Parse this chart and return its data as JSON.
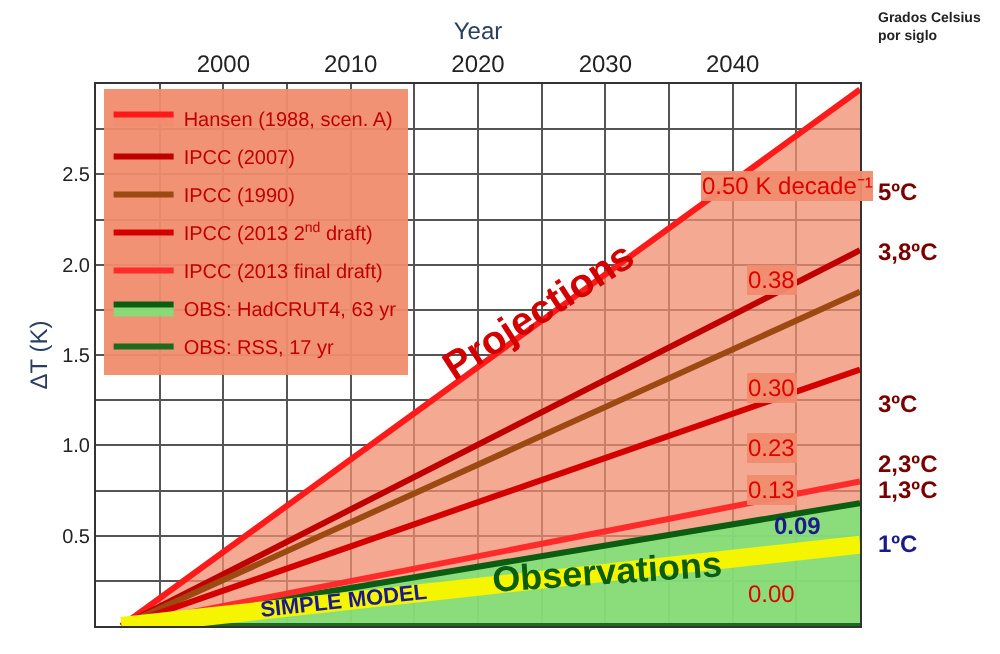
{
  "chart_data": {
    "type": "line",
    "xlabel": "Year",
    "ylabel": "ΔT (K)",
    "xlim": [
      1990,
      2050
    ],
    "ylim": [
      0,
      3.0
    ],
    "xticks": [
      {
        "value": 1995,
        "label": null
      },
      2000,
      {
        "value": 2005,
        "label": null
      },
      2010,
      {
        "value": 2015,
        "label": null
      },
      2020,
      {
        "value": 2025,
        "label": null
      },
      2030,
      {
        "value": 2035,
        "label": null
      },
      2040,
      {
        "value": 2045,
        "label": null
      }
    ],
    "yticks": [
      {
        "value": 0.25,
        "label": null
      },
      0.5,
      {
        "value": 0.75,
        "label": null
      },
      {
        "value": 1,
        "label": "1.0"
      },
      {
        "value": 1.25,
        "label": null
      },
      1.5,
      {
        "value": 1.75,
        "label": null
      },
      {
        "value": 2,
        "label": "2.0"
      },
      {
        "value": 2.25,
        "label": null
      },
      2.5,
      {
        "value": 2.75,
        "label": null
      }
    ],
    "grid": true,
    "legend": "top left",
    "x": [
      1992,
      2050
    ],
    "series": [
      {
        "name": "Hansen (1988, scen. A)",
        "type": "area",
        "color": "#ff1a1a",
        "values": [
          0,
          2.97
        ]
      },
      {
        "name": "IPCC (2007)",
        "color": "#c00000",
        "values": [
          0,
          2.08
        ]
      },
      {
        "name": "IPCC (1990)",
        "color": "#9c4a12",
        "values": [
          0,
          1.85
        ]
      },
      {
        "name": "IPCC (2013 2$^{nd}$ draft)",
        "color": "#d40000",
        "values": [
          0,
          1.42
        ]
      },
      {
        "name": "IPCC (2013 final draft)",
        "color": "#ff2a2a",
        "values": [
          0,
          0.8
        ]
      },
      {
        "name": "OBS: HadCRUT4, 63 yr",
        "type": "area",
        "color": "#0b5d12",
        "values": [
          0,
          0.68
        ]
      },
      {
        "name": "OBS: RSS, 17 yr",
        "color": "#1e6b1e",
        "values": [
          0,
          0
        ]
      },
      {
        "name": "SIMPLE MODEL",
        "color": "#f5f500",
        "values": [
          0,
          0.45
        ]
      }
    ],
    "annotations": [
      "0.50 K decade⁻¹",
      "0.38",
      "0.30",
      "0.23",
      "0.13",
      "0.09",
      "0.00",
      "Projections",
      "Observations",
      "Grados Celsius por siglo",
      "5ºC",
      "3,8ºC",
      "3ºC",
      "2,3ºC",
      "1,3ºC",
      "1ºC"
    ]
  }
}
